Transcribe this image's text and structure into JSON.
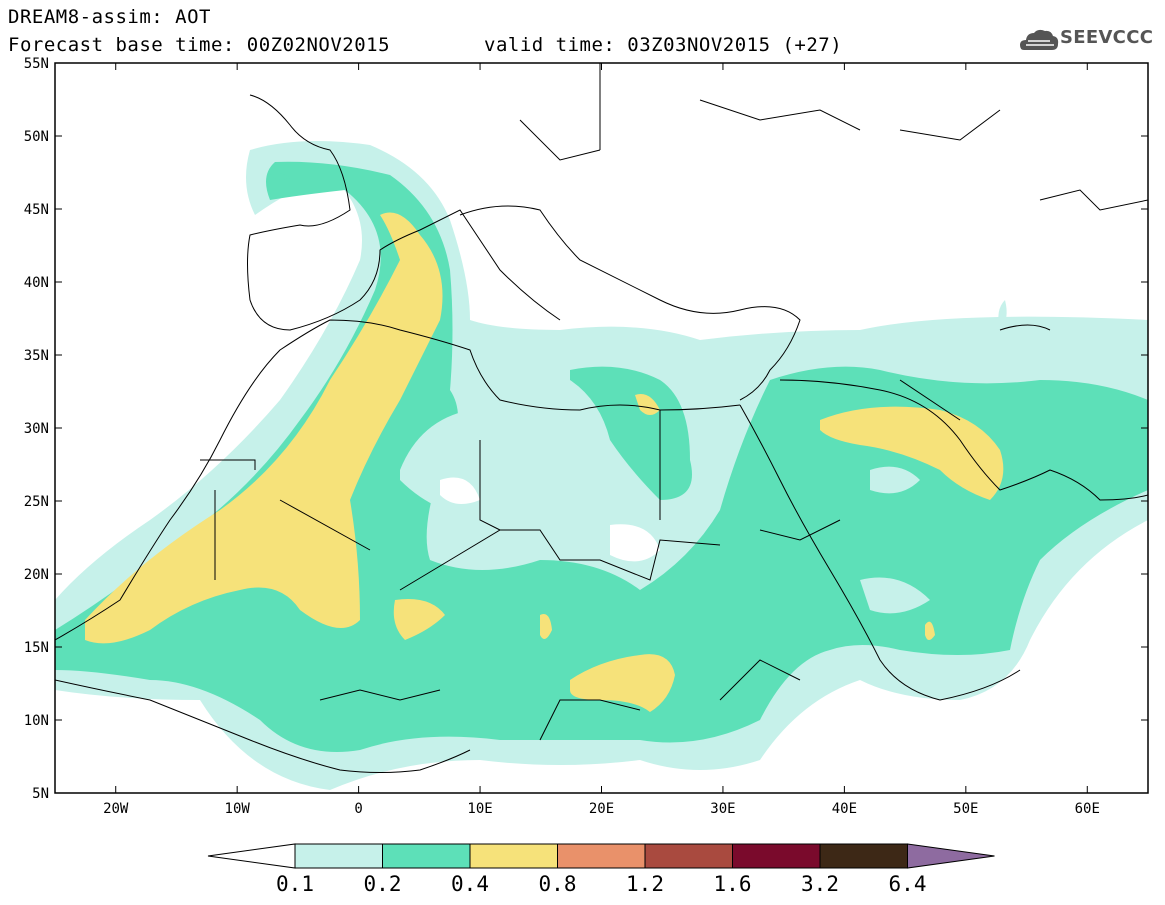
{
  "header": {
    "title": "DREAM8-assim: AOT",
    "base_time": "Forecast base time: 00Z02NOV2015",
    "valid_time": "valid time: 03Z03NOV2015 (+27)",
    "logo_text": "SEEVCCC"
  },
  "map": {
    "lon_range": [
      -25,
      65
    ],
    "lat_range": [
      5,
      55
    ],
    "lat_ticks": [
      "55N",
      "50N",
      "45N",
      "40N",
      "35N",
      "30N",
      "25N",
      "20N",
      "15N",
      "10N",
      "5N"
    ],
    "lon_ticks": [
      "20W",
      "10W",
      "0",
      "10E",
      "20E",
      "30E",
      "40E",
      "50E",
      "60E"
    ]
  },
  "colorbar": {
    "labels": [
      "0.1",
      "0.2",
      "0.4",
      "0.8",
      "1.2",
      "1.6",
      "3.2",
      "6.4"
    ],
    "colors": [
      "#ffffff",
      "#c6f1ea",
      "#5de0b8",
      "#f6e27a",
      "#e9916a",
      "#a94a3f",
      "#7a0a2c",
      "#3d2816",
      "#8e6ba0"
    ]
  }
}
